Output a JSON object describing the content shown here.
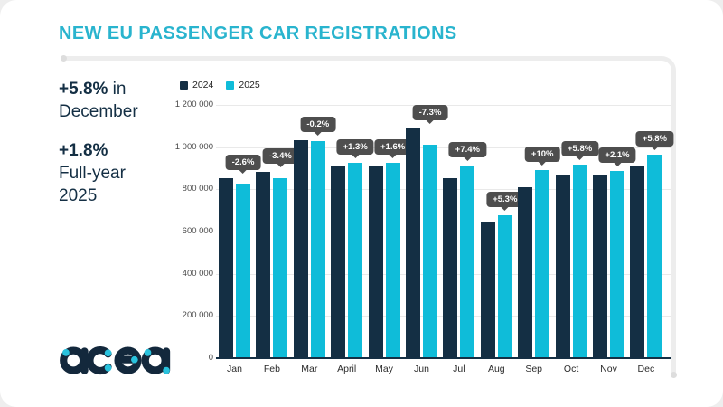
{
  "title": "NEW EU PASSENGER CAR REGISTRATIONS",
  "highlights": {
    "value1": "+5.8%",
    "value1_suffix": " in",
    "value1_caption": "December",
    "value2": "+1.8%",
    "value2_caption_line1": "Full-year",
    "value2_caption_line2": "2025"
  },
  "logo_text": "acea",
  "colors": {
    "title": "#29b4ce",
    "navy": "#142f44",
    "cyan": "#0fbcd9",
    "tooltip_bg": "#4e4e4e",
    "gridline": "#e9e9e9",
    "card_bg": "#ffffff"
  },
  "chart_data": {
    "type": "bar",
    "categories": [
      "Jan",
      "Feb",
      "Mar",
      "April",
      "May",
      "Jun",
      "Jul",
      "Aug",
      "Sep",
      "Oct",
      "Nov",
      "Dec"
    ],
    "series": [
      {
        "name": "2024",
        "color": "#142f44",
        "values": [
          851000,
          884000,
          1032000,
          914000,
          912000,
          1090000,
          852000,
          644000,
          809000,
          866000,
          870000,
          911000
        ]
      },
      {
        "name": "2025",
        "color": "#0fbcd9",
        "values": [
          829000,
          854000,
          1030000,
          926000,
          926000,
          1010000,
          915000,
          678000,
          890000,
          917000,
          888000,
          963000
        ]
      }
    ],
    "change_labels": [
      "-2.6%",
      "-3.4%",
      "-0.2%",
      "+1.3%",
      "+1.6%",
      "-7.3%",
      "+7.4%",
      "+5.3%",
      "+10%",
      "+5.8%",
      "+2.1%",
      "+5.8%"
    ],
    "yticks": [
      {
        "value": 0,
        "label": "0"
      },
      {
        "value": 200000,
        "label": "200 000"
      },
      {
        "value": 400000,
        "label": "400 000"
      },
      {
        "value": 600000,
        "label": "600 000"
      },
      {
        "value": 800000,
        "label": "800 000"
      },
      {
        "value": 1000000,
        "label": "1 000 000"
      },
      {
        "value": 1200000,
        "label": "1 200 000"
      }
    ],
    "ylim": [
      0,
      1200000
    ],
    "grid": true,
    "legend_position": "top",
    "legend": [
      "2024",
      "2025"
    ]
  }
}
